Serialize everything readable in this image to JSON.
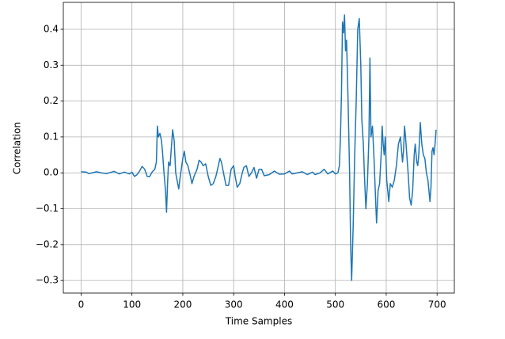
{
  "chart_data": {
    "type": "line",
    "xlabel": "Time Samples",
    "ylabel": "Correlation",
    "xlim": [
      -34.95,
      733.95
    ],
    "ylim": [
      -0.335,
      0.475
    ],
    "xticks": [
      0,
      100,
      200,
      300,
      400,
      500,
      600,
      700
    ],
    "yticks": [
      {
        "value": -0.3,
        "label": "−0.3"
      },
      {
        "value": -0.2,
        "label": "−0.2"
      },
      {
        "value": -0.1,
        "label": "−0.1"
      },
      {
        "value": 0,
        "label": "0.0"
      },
      0.1,
      0.2,
      0.3,
      0.4
    ],
    "grid": true,
    "series": [
      {
        "color": "#1f77b4",
        "x": [
          0,
          10,
          15,
          25,
          30,
          40,
          50,
          60,
          65,
          75,
          85,
          95,
          100,
          105,
          110,
          115,
          120,
          125,
          130,
          135,
          140,
          145,
          148,
          150,
          152,
          155,
          158,
          160,
          163,
          166,
          168,
          170,
          172,
          175,
          178,
          180,
          183,
          186,
          190,
          192,
          195,
          200,
          203,
          206,
          210,
          215,
          218,
          222,
          228,
          232,
          236,
          240,
          245,
          250,
          255,
          260,
          265,
          270,
          273,
          276,
          280,
          285,
          290,
          295,
          300,
          303,
          307,
          312,
          317,
          320,
          325,
          330,
          335,
          340,
          345,
          350,
          355,
          360,
          370,
          380,
          390,
          400,
          410,
          415,
          425,
          435,
          445,
          455,
          460,
          470,
          478,
          485,
          495,
          500,
          505,
          508,
          510,
          512,
          514,
          516,
          518,
          520,
          522,
          525,
          528,
          530,
          532,
          535,
          538,
          541,
          544,
          547,
          550,
          552,
          555,
          557,
          560,
          563,
          566,
          568,
          570,
          573,
          576,
          579,
          581,
          584,
          587,
          590,
          592,
          594,
          596,
          598,
          601,
          605,
          608,
          612,
          616,
          620,
          624,
          628,
          632,
          634,
          636,
          638,
          640,
          643,
          646,
          649,
          652,
          655,
          657,
          660,
          662,
          664,
          667,
          670,
          673,
          676,
          679,
          682,
          686,
          688,
          690,
          692,
          694,
          696,
          698
        ],
        "values": [
          0.003,
          0.002,
          -0.002,
          0.001,
          0.003,
          0.0,
          -0.002,
          0.002,
          0.004,
          -0.003,
          0.002,
          -0.003,
          0.002,
          -0.01,
          -0.005,
          0.005,
          0.018,
          0.01,
          -0.01,
          -0.01,
          0.003,
          0.01,
          0.03,
          0.13,
          0.1,
          0.11,
          0.09,
          0.06,
          0.0,
          -0.05,
          -0.11,
          -0.03,
          0.03,
          0.02,
          0.08,
          0.12,
          0.09,
          0.0,
          -0.03,
          -0.045,
          -0.01,
          0.04,
          0.06,
          0.03,
          0.02,
          -0.01,
          -0.03,
          -0.01,
          0.01,
          0.035,
          0.03,
          0.02,
          0.025,
          -0.01,
          -0.035,
          -0.03,
          -0.01,
          0.02,
          0.04,
          0.03,
          0.0,
          -0.035,
          -0.035,
          0.01,
          0.02,
          -0.01,
          -0.04,
          -0.03,
          0.0,
          0.015,
          0.02,
          -0.01,
          0.0,
          0.015,
          -0.015,
          0.01,
          0.01,
          -0.008,
          -0.005,
          0.005,
          -0.004,
          -0.003,
          0.005,
          -0.003,
          0.0,
          0.003,
          -0.005,
          0.002,
          -0.005,
          0.0,
          0.01,
          -0.003,
          0.005,
          -0.003,
          0.0,
          0.02,
          0.1,
          0.22,
          0.42,
          0.39,
          0.44,
          0.34,
          0.37,
          0.2,
          0.0,
          -0.2,
          -0.3,
          -0.15,
          0.05,
          0.2,
          0.4,
          0.43,
          0.3,
          0.15,
          0.08,
          0.0,
          -0.1,
          -0.03,
          0.1,
          0.32,
          0.1,
          0.13,
          0.04,
          -0.07,
          -0.14,
          -0.05,
          -0.03,
          0.05,
          0.13,
          0.08,
          0.05,
          0.1,
          -0.02,
          -0.08,
          -0.03,
          -0.04,
          -0.02,
          0.02,
          0.08,
          0.1,
          0.03,
          0.06,
          0.13,
          0.1,
          0.06,
          0.0,
          -0.07,
          -0.09,
          -0.05,
          0.05,
          0.08,
          0.03,
          0.02,
          0.05,
          0.14,
          0.08,
          0.05,
          0.04,
          0.0,
          -0.02,
          -0.08,
          -0.04,
          0.06,
          0.07,
          0.05,
          0.08,
          0.12
        ]
      }
    ]
  }
}
